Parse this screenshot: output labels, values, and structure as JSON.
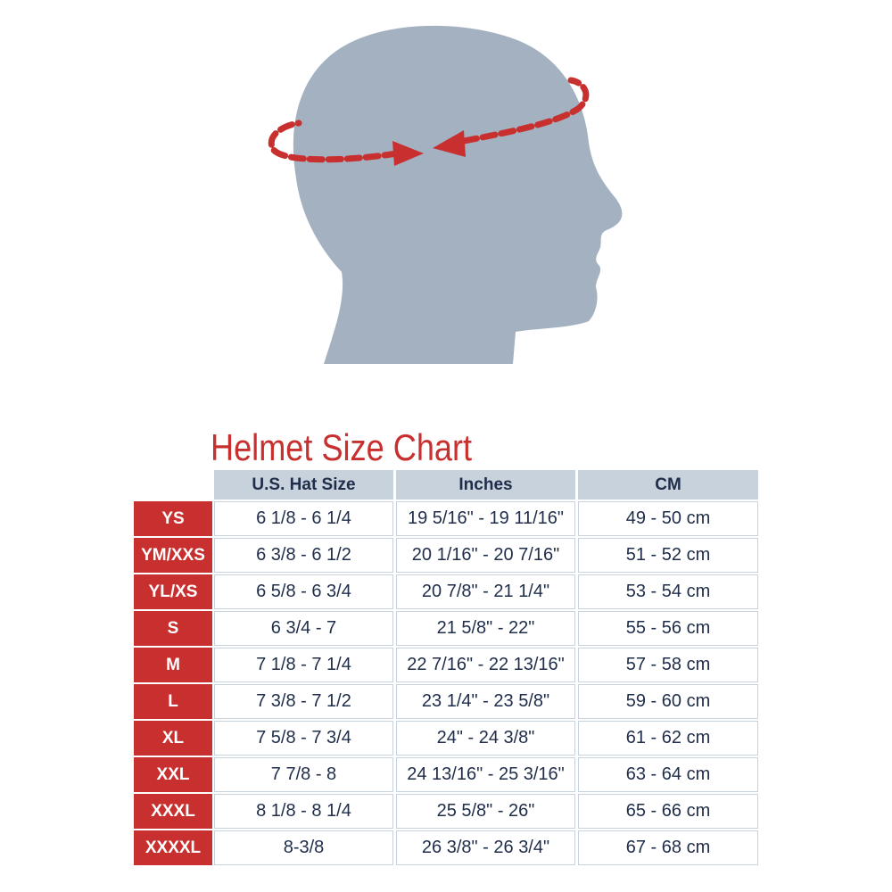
{
  "title": "Helmet Size Chart",
  "colors": {
    "accent_red": "#c8302f",
    "header_bg": "#c8d2dc",
    "text_navy": "#1f2d4a",
    "head_gray": "#a3b1c0"
  },
  "illustration": {
    "icon": "head-circumference-measurement-icon"
  },
  "columns": [
    "U.S. Hat Size",
    "Inches",
    "CM"
  ],
  "rows": [
    {
      "size": "YS",
      "hat": "6 1/8 - 6 1/4",
      "inches": "19 5/16\" - 19 11/16\"",
      "cm": "49 - 50 cm"
    },
    {
      "size": "YM/XXS",
      "hat": "6 3/8 - 6 1/2",
      "inches": "20 1/16\" - 20 7/16\"",
      "cm": "51 - 52 cm"
    },
    {
      "size": "YL/XS",
      "hat": "6 5/8 - 6 3/4",
      "inches": "20 7/8\" - 21 1/4\"",
      "cm": "53 - 54 cm"
    },
    {
      "size": "S",
      "hat": "6 3/4 - 7",
      "inches": "21 5/8\" - 22\"",
      "cm": "55 - 56 cm"
    },
    {
      "size": "M",
      "hat": "7 1/8 - 7 1/4",
      "inches": "22 7/16\" - 22 13/16\"",
      "cm": "57 - 58 cm"
    },
    {
      "size": "L",
      "hat": "7 3/8 - 7 1/2",
      "inches": "23 1/4\" - 23 5/8\"",
      "cm": "59 - 60 cm"
    },
    {
      "size": "XL",
      "hat": "7 5/8 - 7 3/4",
      "inches": "24\" - 24 3/8\"",
      "cm": "61 - 62 cm"
    },
    {
      "size": "XXL",
      "hat": "7 7/8 - 8",
      "inches": "24 13/16\" - 25 3/16\"",
      "cm": "63 - 64 cm"
    },
    {
      "size": "XXXL",
      "hat": "8 1/8 - 8 1/4",
      "inches": "25 5/8\" - 26\"",
      "cm": "65 - 66 cm"
    },
    {
      "size": "XXXXL",
      "hat": "8-3/8",
      "inches": "26 3/8\" - 26 3/4\"",
      "cm": "67 - 68 cm"
    }
  ]
}
